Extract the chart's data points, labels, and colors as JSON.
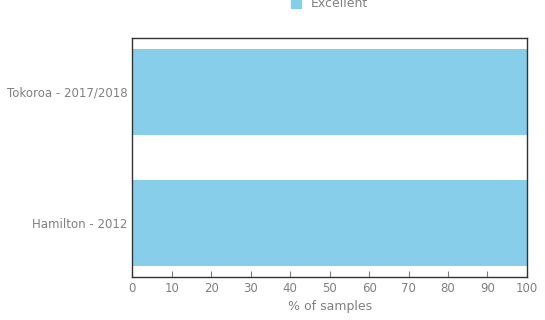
{
  "categories": [
    "Hamilton - 2012",
    "Tokoroa - 2017/2018"
  ],
  "values": [
    100,
    100
  ],
  "bar_color": "#87CEEB",
  "legend_label": "Excellent",
  "xlabel": "% of samples",
  "xlim": [
    0,
    100
  ],
  "xticks": [
    0,
    10,
    20,
    30,
    40,
    50,
    60,
    70,
    80,
    90,
    100
  ],
  "bar_height": 0.65,
  "background_color": "#ffffff",
  "text_color": "#808080",
  "spine_color": "#333333",
  "legend_color": "#87CEEB"
}
